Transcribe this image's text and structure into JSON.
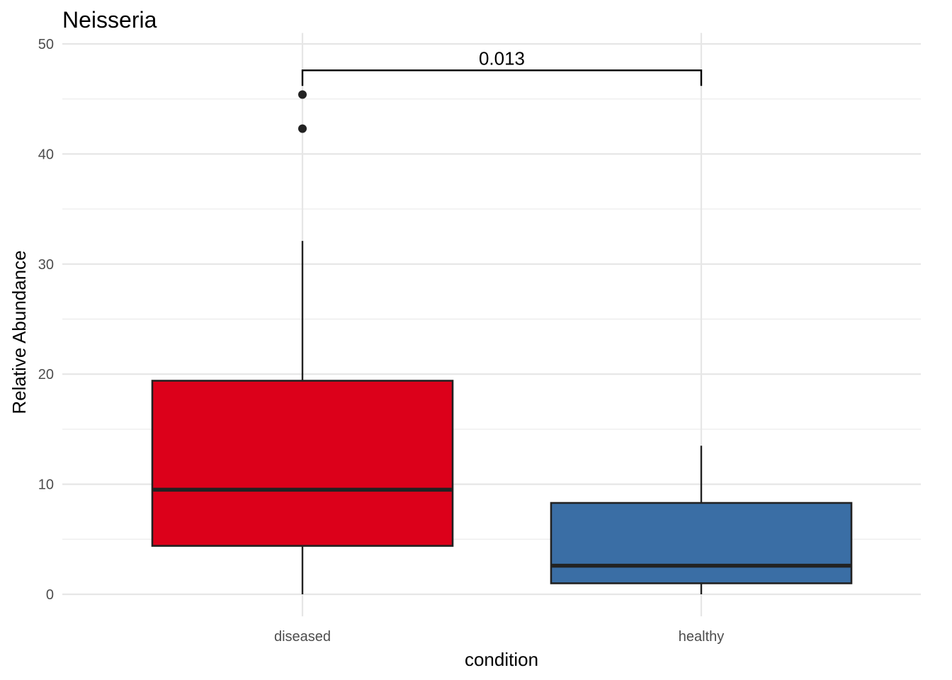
{
  "chart_data": {
    "type": "boxplot",
    "title": "Neisseria",
    "xlabel": "condition",
    "ylabel": "Relative Abundance",
    "ylim": [
      -2,
      51
    ],
    "yticks": [
      0,
      10,
      20,
      30,
      40,
      50
    ],
    "grid": true,
    "categories": [
      "diseased",
      "healthy"
    ],
    "boxes": [
      {
        "category": "diseased",
        "color": "#DC001A",
        "whisker_low": 0,
        "q1": 4.4,
        "median": 9.5,
        "q3": 19.4,
        "whisker_high": 32.1,
        "outliers": [
          42.3,
          45.4
        ]
      },
      {
        "category": "healthy",
        "color": "#3A6EA5",
        "whisker_low": 0,
        "q1": 1.0,
        "median": 2.6,
        "q3": 8.3,
        "whisker_high": 13.5,
        "outliers": []
      }
    ],
    "annotations": [
      {
        "type": "bracket",
        "from": "diseased",
        "to": "healthy",
        "y": 47.6,
        "label": "0.013"
      }
    ]
  }
}
